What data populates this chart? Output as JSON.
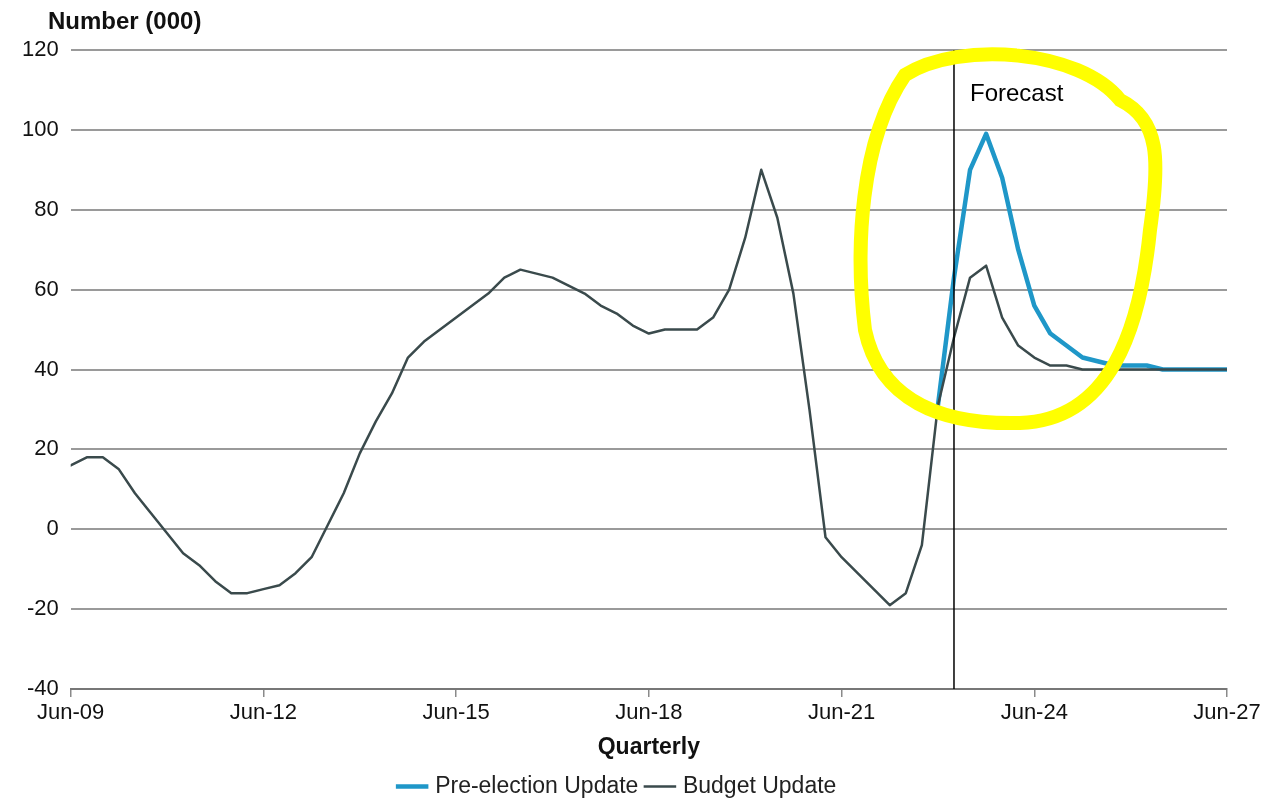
{
  "chart_data": {
    "type": "line",
    "ylabel": "Number (000)",
    "xlabel": "Quarterly",
    "x": [
      "2009-06",
      "2009-09",
      "2009-12",
      "2010-03",
      "2010-06",
      "2010-09",
      "2010-12",
      "2011-03",
      "2011-06",
      "2011-09",
      "2011-12",
      "2012-03",
      "2012-06",
      "2012-09",
      "2012-12",
      "2013-03",
      "2013-06",
      "2013-09",
      "2013-12",
      "2014-03",
      "2014-06",
      "2014-09",
      "2014-12",
      "2015-03",
      "2015-06",
      "2015-09",
      "2015-12",
      "2016-03",
      "2016-06",
      "2016-09",
      "2016-12",
      "2017-03",
      "2017-06",
      "2017-09",
      "2017-12",
      "2018-03",
      "2018-06",
      "2018-09",
      "2018-12",
      "2019-03",
      "2019-06",
      "2019-09",
      "2019-12",
      "2020-03",
      "2020-06",
      "2020-09",
      "2020-12",
      "2021-03",
      "2021-06",
      "2021-09",
      "2021-12",
      "2022-03",
      "2022-06",
      "2022-09",
      "2022-12",
      "2023-03",
      "2023-06",
      "2023-09",
      "2023-12",
      "2024-03",
      "2024-06",
      "2024-09",
      "2024-12",
      "2025-03",
      "2025-06",
      "2025-09",
      "2025-12",
      "2026-03",
      "2026-06",
      "2026-09",
      "2026-12",
      "2027-03",
      "2027-06"
    ],
    "series": [
      {
        "name": "Pre-election Update",
        "color": "#1f97c8",
        "values": [
          null,
          null,
          null,
          null,
          null,
          null,
          null,
          null,
          null,
          null,
          null,
          null,
          null,
          null,
          null,
          null,
          null,
          null,
          null,
          null,
          null,
          null,
          null,
          null,
          null,
          null,
          null,
          null,
          null,
          null,
          null,
          null,
          null,
          null,
          null,
          null,
          null,
          null,
          null,
          null,
          null,
          null,
          null,
          null,
          null,
          null,
          null,
          null,
          null,
          null,
          null,
          null,
          null,
          null,
          31,
          63,
          90,
          99,
          88,
          70,
          56,
          49,
          46,
          43,
          42,
          41,
          41,
          41,
          40,
          40,
          40,
          40,
          40
        ]
      },
      {
        "name": "Budget Update",
        "color": "#3a4a4c",
        "values": [
          16,
          18,
          18,
          15,
          9,
          4,
          -1,
          -6,
          -9,
          -13,
          -16,
          -16,
          -15,
          -14,
          -11,
          -7,
          1,
          9,
          19,
          27,
          34,
          43,
          47,
          50,
          53,
          56,
          59,
          63,
          65,
          64,
          63,
          61,
          59,
          56,
          54,
          51,
          49,
          50,
          50,
          50,
          53,
          60,
          73,
          90,
          78,
          59,
          30,
          -2,
          -7,
          -11,
          -15,
          -19,
          -16,
          -4,
          31,
          48,
          63,
          66,
          53,
          46,
          43,
          41,
          41,
          40,
          40,
          40,
          40,
          40,
          40,
          40,
          40,
          40,
          40
        ]
      }
    ],
    "xlim": [
      "2009-06",
      "2027-06"
    ],
    "xticks": [
      {
        "value": "2009-06",
        "label": "Jun-09"
      },
      {
        "value": "2012-06",
        "label": "Jun-12"
      },
      {
        "value": "2015-06",
        "label": "Jun-15"
      },
      {
        "value": "2018-06",
        "label": "Jun-18"
      },
      {
        "value": "2021-06",
        "label": "Jun-21"
      },
      {
        "value": "2024-06",
        "label": "Jun-24"
      },
      {
        "value": "2027-06",
        "label": "Jun-27"
      }
    ],
    "ylim": [
      -40,
      120
    ],
    "yticks": [
      -40,
      -20,
      0,
      20,
      40,
      60,
      80,
      100,
      120
    ],
    "ref_lines": [
      {
        "axis": "x",
        "value": "2023-03",
        "label": "Forecast",
        "color": "#000000"
      }
    ],
    "grid": "y",
    "legend": "bottom",
    "marker": "none",
    "line_style": "solid"
  }
}
